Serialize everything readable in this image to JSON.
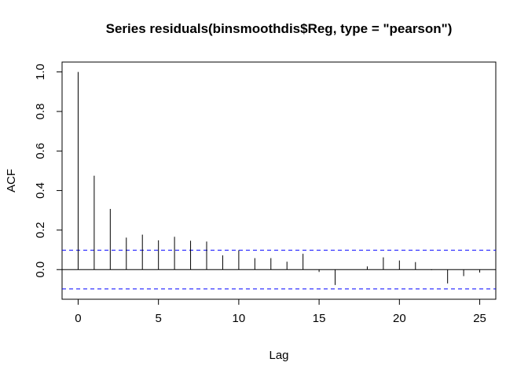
{
  "chart_data": {
    "type": "bar",
    "title": "Series  residuals(binsmoothdis$Reg, type = \"pearson\")",
    "xlabel": "Lag",
    "ylabel": "ACF",
    "xlim": [
      -1.0,
      26.0
    ],
    "ylim": [
      -0.15,
      1.05
    ],
    "x_ticks": [
      0,
      5,
      10,
      15,
      20,
      25
    ],
    "x_tick_labels": [
      "0",
      "5",
      "10",
      "15",
      "20",
      "25"
    ],
    "y_ticks": [
      0.0,
      0.2,
      0.4,
      0.6,
      0.8,
      1.0
    ],
    "y_tick_labels": [
      "0.0",
      "0.2",
      "0.4",
      "0.6",
      "0.8",
      "1.0"
    ],
    "lags": [
      0,
      1,
      2,
      3,
      4,
      5,
      6,
      7,
      8,
      9,
      10,
      11,
      12,
      13,
      14,
      15,
      16,
      17,
      18,
      19,
      20,
      21,
      22,
      23,
      24,
      25
    ],
    "acf": [
      1.0,
      0.475,
      0.307,
      0.162,
      0.177,
      0.148,
      0.166,
      0.146,
      0.142,
      0.072,
      0.098,
      0.058,
      0.058,
      0.04,
      0.08,
      -0.012,
      -0.078,
      0.0,
      0.016,
      0.062,
      0.046,
      0.038,
      -0.003,
      -0.07,
      -0.033,
      -0.015
    ],
    "ci_bounds": [
      0.098,
      -0.098
    ],
    "ci_color": "#0000ff",
    "bar_color": "#000000",
    "grid": false
  }
}
